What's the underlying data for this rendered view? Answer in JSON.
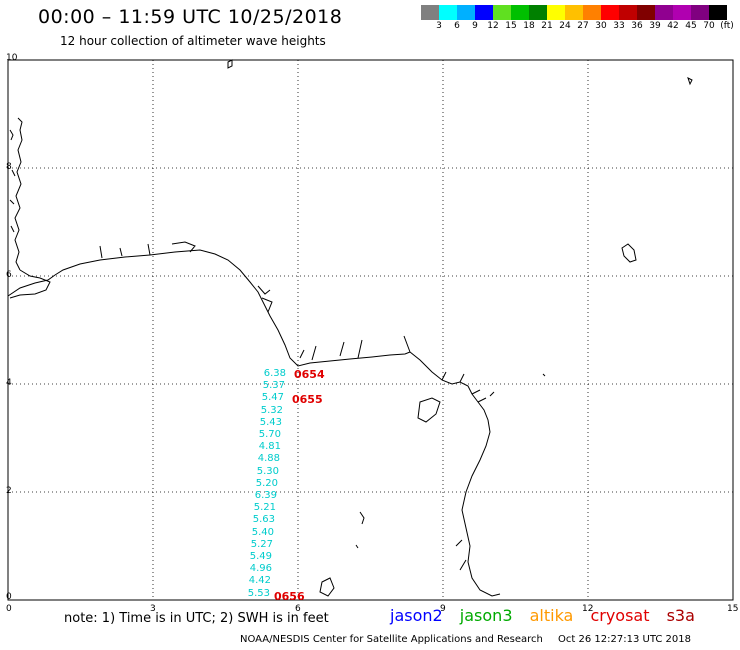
{
  "header": {
    "title": "00:00 – 11:59 UTC 10/25/2018",
    "subtitle": "12 hour collection of altimeter wave heights"
  },
  "color_scale": {
    "colors": [
      "#808080",
      "#00ffff",
      "#00b0ff",
      "#0000ff",
      "#60e020",
      "#00c000",
      "#008000",
      "#ffff00",
      "#ffc000",
      "#ff8000",
      "#ff0000",
      "#c00000",
      "#800000",
      "#900090",
      "#b000b0",
      "#800080",
      "#000000"
    ],
    "labels": [
      "3",
      "6",
      "9",
      "12",
      "15",
      "18",
      "21",
      "24",
      "27",
      "30",
      "33",
      "36",
      "39",
      "42",
      "45",
      "70",
      "(ft)"
    ]
  },
  "map": {
    "x_ticks": [
      "0",
      "3",
      "6",
      "9",
      "12",
      "15"
    ],
    "y_ticks": [
      "10",
      "8",
      "6",
      "4",
      "2",
      "0"
    ]
  },
  "swh_readings": [
    "6.38",
    "5.37",
    "5.47",
    "5.32",
    "5.43",
    "5.70",
    "4.81",
    "4.88",
    "5.30",
    "5.20",
    "6.39",
    "5.21",
    "5.63",
    "5.40",
    "5.27",
    "5.49",
    "4.96",
    "4.42",
    "5.53"
  ],
  "pass_labels": [
    "0654",
    "0655",
    "0656"
  ],
  "footer": {
    "note": "note: 1) Time is in UTC; 2) SWH is in feet",
    "satellites": [
      {
        "name": "jason2",
        "color": "#0000ff"
      },
      {
        "name": "jason3",
        "color": "#00aa00"
      },
      {
        "name": "altika",
        "color": "#ff9900"
      },
      {
        "name": "cryosat",
        "color": "#e00000"
      },
      {
        "name": "s3a",
        "color": "#aa0000"
      }
    ],
    "credit": "NOAA/NESDIS Center for Satellite Applications and Research",
    "generated": "Oct 26 12:27:13 UTC 2018"
  }
}
